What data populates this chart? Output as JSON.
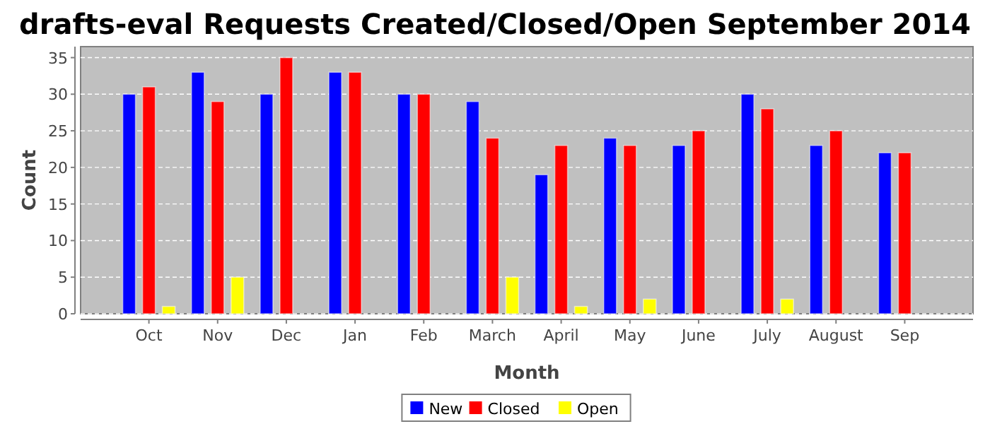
{
  "chart_data": {
    "type": "bar",
    "title": "drafts-eval Requests Created/Closed/Open September 2014",
    "xlabel": "Month",
    "ylabel": "Count",
    "categories": [
      "Oct",
      "Nov",
      "Dec",
      "Jan",
      "Feb",
      "March",
      "April",
      "May",
      "June",
      "July",
      "August",
      "Sep"
    ],
    "series": [
      {
        "name": "New",
        "color": "#0000ff",
        "values": [
          30,
          33,
          30,
          33,
          30,
          29,
          19,
          24,
          23,
          30,
          23,
          22
        ]
      },
      {
        "name": "Closed",
        "color": "#ff0000",
        "values": [
          31,
          29,
          35,
          33,
          30,
          24,
          23,
          23,
          25,
          28,
          25,
          22
        ]
      },
      {
        "name": "Open",
        "color": "#ffff00",
        "values": [
          1,
          5,
          0,
          0,
          0,
          5,
          1,
          2,
          0,
          2,
          0,
          0
        ]
      }
    ],
    "ylim": [
      0,
      36.5
    ],
    "yticks": [
      0,
      5,
      10,
      15,
      20,
      25,
      30,
      35
    ],
    "grid": "y",
    "legend": "bottom"
  }
}
